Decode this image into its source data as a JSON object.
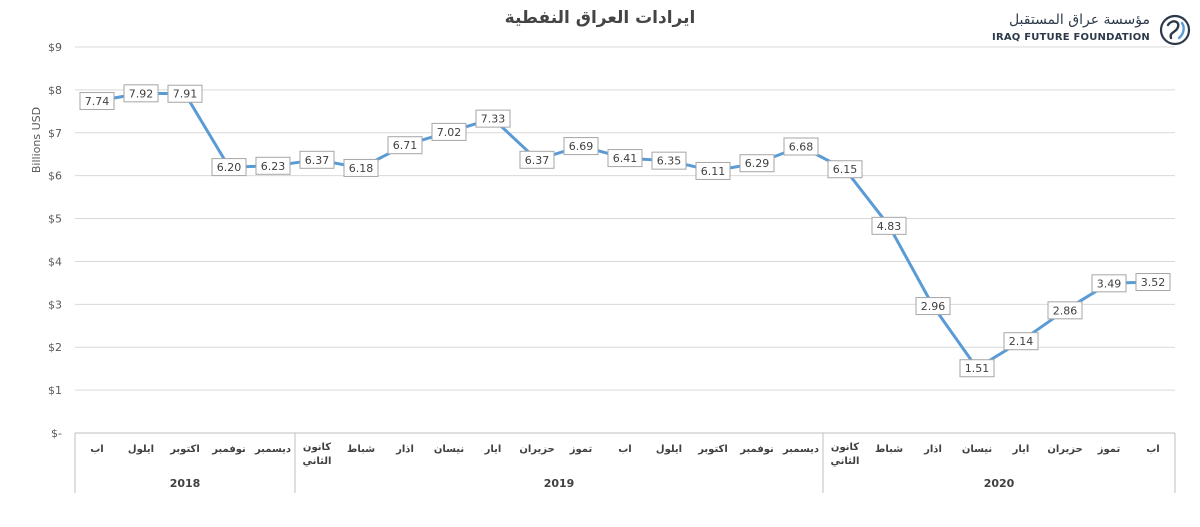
{
  "header": {
    "title": "ايرادات العراق النفطية",
    "logo_arabic": "مؤسسة عراق المستقبل",
    "logo_english": "IRAQ FUTURE FOUNDATION"
  },
  "chart_data": {
    "type": "line",
    "title": "ايرادات العراق النفطية",
    "ylabel": "Billions USD",
    "xlabel": "",
    "ylim": [
      0,
      9
    ],
    "yticks": [
      "$-",
      "$1",
      "$2",
      "$3",
      "$4",
      "$5",
      "$6",
      "$7",
      "$8",
      "$9"
    ],
    "grid": true,
    "legend": "none",
    "line_color": "#5b9bd5",
    "categories": [
      "اب",
      "ايلول",
      "اكتوبر",
      "نوفمبر",
      "ديسمبر",
      "كانون الثاني",
      "شباط",
      "اذار",
      "نيسان",
      "ايار",
      "حزيران",
      "تموز",
      "اب",
      "ايلول",
      "اكتوبر",
      "نوفمبر",
      "ديسمبر",
      "كانون الثاني",
      "شباط",
      "اذار",
      "نيسان",
      "ايار",
      "حزيران",
      "تموز",
      "اب"
    ],
    "years": [
      {
        "label": "2018",
        "start": 0,
        "end": 4
      },
      {
        "label": "2019",
        "start": 5,
        "end": 16
      },
      {
        "label": "2020",
        "start": 17,
        "end": 24
      }
    ],
    "series": [
      {
        "values": [
          7.74,
          7.92,
          7.91,
          6.2,
          6.23,
          6.37,
          6.18,
          6.71,
          7.02,
          7.33,
          6.37,
          6.69,
          6.41,
          6.35,
          6.11,
          6.29,
          6.68,
          6.15,
          4.83,
          2.96,
          1.51,
          2.14,
          2.86,
          3.49,
          3.52
        ],
        "labels": [
          "7.74",
          "7.92",
          "7.91",
          "6.20",
          "6.23",
          "6.37",
          "6.18",
          "6.71",
          "7.02",
          "7.33",
          "6.37",
          "6.69",
          "6.41",
          "6.35",
          "6.11",
          "6.29",
          "6.68",
          "6.15",
          "4.83",
          "2.96",
          "1.51",
          "2.14",
          "2.86",
          "3.49",
          "3.52"
        ]
      }
    ]
  }
}
